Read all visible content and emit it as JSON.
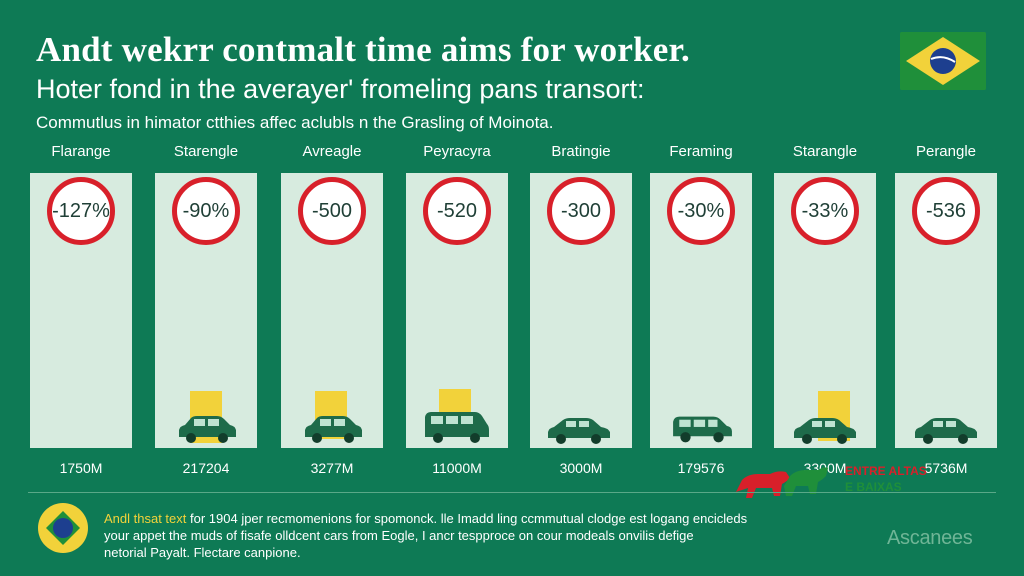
{
  "title": "Andt wekrr contmalt time aims for worker.",
  "subtitle": "Hoter fond in the averayer' fromeling pans transort:",
  "caption": "Commutlus in himator ctthies affec aclubls n the Grasling of Moinota.",
  "columns": [
    {
      "header": "Flarange",
      "badge": "-127%",
      "value": "1750M",
      "box": false
    },
    {
      "header": "Starengle",
      "badge": "-90%",
      "value": "217204",
      "box": true
    },
    {
      "header": "Avreagle",
      "badge": "-500",
      "value": "3277M",
      "box": true
    },
    {
      "header": "Peyracyra",
      "badge": "-520",
      "value": "11000M",
      "box": true
    },
    {
      "header": "Bratingie",
      "badge": "-300",
      "value": "3000M",
      "box": false
    },
    {
      "header": "Feraming",
      "badge": "-30%",
      "value": "179576",
      "box": false
    },
    {
      "header": "Starangle",
      "badge": "-33%",
      "value": "3300M",
      "box": true
    },
    {
      "header": "Perangle",
      "badge": "-536",
      "value": "5736M",
      "box": false
    }
  ],
  "footer": {
    "lead": "Andl thsat text",
    "line1": " for 1904 jper recmomenions for spomonck. lle Imadd ling ccmmutual clodge est logang encicleds",
    "line2": "your appet the muds of fisafe olldcent cars from Eogle, I ancr tespproce on cour modeals onvilis defige",
    "line3": "netorial Payalt. Flectare canpione."
  },
  "brand_line1": "ENTRE ALTAS",
  "brand_line2": "E BAIXAS",
  "watermark": "Ascanees",
  "colors": {
    "background": "#0e7a55",
    "column": "#d7ebdf",
    "badge_ring": "#d8202a",
    "car": "#1e6b4a",
    "accent_yellow": "#f2d23a"
  }
}
